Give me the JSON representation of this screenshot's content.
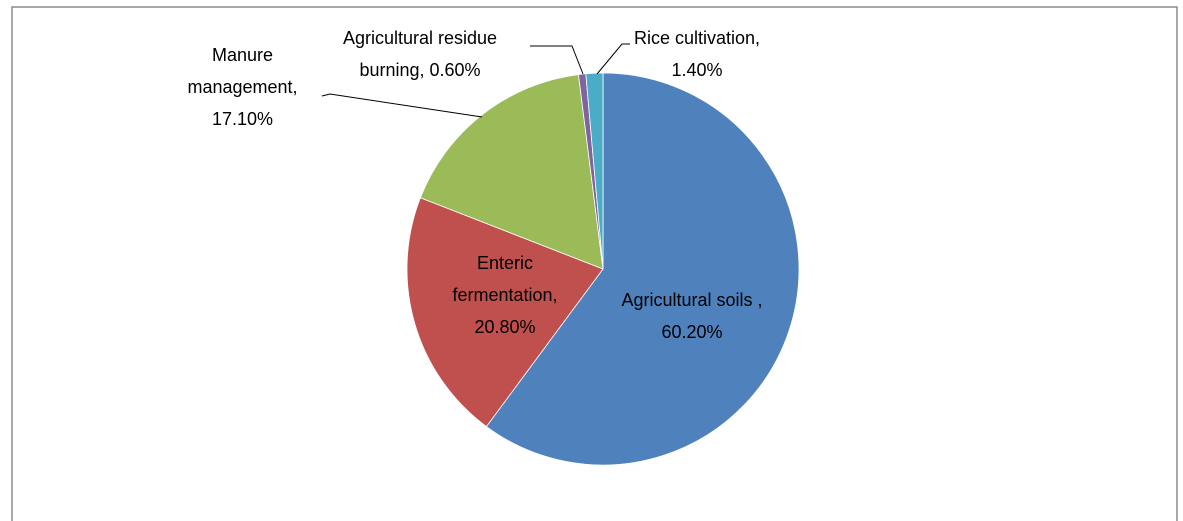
{
  "chart_data": {
    "type": "pie",
    "categories": [
      "Agricultural soils ,",
      "Enteric fermentation,",
      "Manure management,",
      "Agricultural residue burning,",
      "Rice cultivation,"
    ],
    "values": [
      60.2,
      20.8,
      17.1,
      0.6,
      1.4
    ],
    "value_labels": [
      "60.20%",
      "20.80%",
      "17.10%",
      "0.60%",
      "1.40%"
    ],
    "colors": [
      "#4f81bd",
      "#c0504d",
      "#9bbb59",
      "#8064a2",
      "#4bacc6"
    ]
  }
}
